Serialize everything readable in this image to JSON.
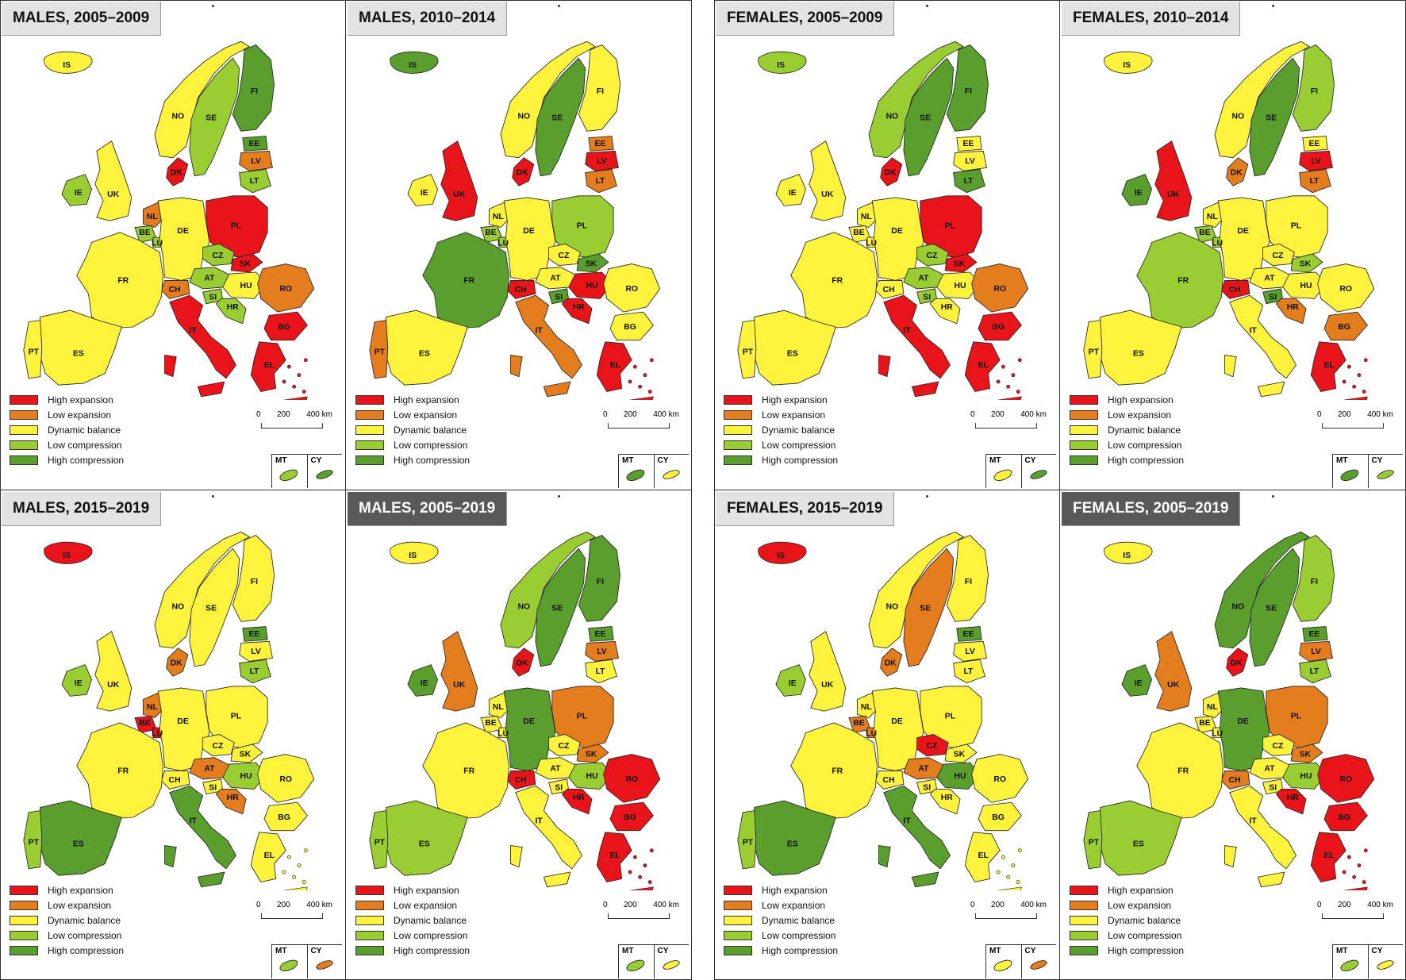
{
  "colors": {
    "high_expansion": "#e8141a",
    "low_expansion": "#e37d1e",
    "dynamic_balance": "#fdf23c",
    "low_compression": "#9acd32",
    "high_compression": "#5a9e2d"
  },
  "legend": [
    {
      "key": "high_expansion",
      "label": "High expansion"
    },
    {
      "key": "low_expansion",
      "label": "Low expansion"
    },
    {
      "key": "dynamic_balance",
      "label": "Dynamic balance"
    },
    {
      "key": "low_compression",
      "label": "Low compression"
    },
    {
      "key": "high_compression",
      "label": "High compression"
    }
  ],
  "scale": {
    "labels": [
      "0",
      "200",
      "400 km"
    ]
  },
  "inset_labels": [
    "MT",
    "CY"
  ],
  "panels": [
    {
      "title": "MALES, 2005–2009",
      "dark": false,
      "classes": {
        "IS": "dynamic_balance",
        "NO": "dynamic_balance",
        "SE": "low_compression",
        "FI": "high_compression",
        "EE": "high_compression",
        "LV": "low_expansion",
        "LT": "low_compression",
        "DK": "high_expansion",
        "IE": "low_compression",
        "UK": "dynamic_balance",
        "NL": "low_expansion",
        "BE": "low_compression",
        "LU": "low_compression",
        "DE": "dynamic_balance",
        "PL": "high_expansion",
        "CZ": "low_compression",
        "SK": "high_expansion",
        "AT": "low_compression",
        "CH": "low_expansion",
        "HU": "dynamic_balance",
        "SI": "low_compression",
        "HR": "low_compression",
        "RO": "low_expansion",
        "BG": "high_expansion",
        "EL": "high_expansion",
        "FR": "dynamic_balance",
        "ES": "dynamic_balance",
        "PT": "dynamic_balance",
        "IT": "high_expansion",
        "MT": "low_compression",
        "CY": "high_compression"
      }
    },
    {
      "title": "MALES, 2010–2014",
      "dark": false,
      "classes": {
        "IS": "high_compression",
        "NO": "dynamic_balance",
        "SE": "high_compression",
        "FI": "dynamic_balance",
        "EE": "low_expansion",
        "LV": "high_expansion",
        "LT": "low_expansion",
        "DK": "high_expansion",
        "IE": "dynamic_balance",
        "UK": "high_expansion",
        "NL": "dynamic_balance",
        "BE": "low_compression",
        "LU": "low_compression",
        "DE": "dynamic_balance",
        "PL": "low_compression",
        "CZ": "dynamic_balance",
        "SK": "high_compression",
        "AT": "dynamic_balance",
        "CH": "high_expansion",
        "HU": "high_expansion",
        "SI": "high_compression",
        "HR": "high_expansion",
        "RO": "dynamic_balance",
        "BG": "dynamic_balance",
        "EL": "high_expansion",
        "FR": "high_compression",
        "ES": "dynamic_balance",
        "PT": "low_expansion",
        "IT": "low_expansion",
        "MT": "high_compression",
        "CY": "dynamic_balance"
      }
    },
    {
      "title": "FEMALES, 2005–2009",
      "dark": false,
      "classes": {
        "IS": "low_compression",
        "NO": "low_compression",
        "SE": "high_compression",
        "FI": "high_compression",
        "EE": "dynamic_balance",
        "LV": "dynamic_balance",
        "LT": "high_compression",
        "DK": "high_expansion",
        "IE": "dynamic_balance",
        "UK": "dynamic_balance",
        "NL": "dynamic_balance",
        "BE": "dynamic_balance",
        "LU": "dynamic_balance",
        "DE": "dynamic_balance",
        "PL": "high_expansion",
        "CZ": "low_compression",
        "SK": "high_expansion",
        "AT": "low_compression",
        "CH": "dynamic_balance",
        "HU": "dynamic_balance",
        "SI": "low_compression",
        "HR": "dynamic_balance",
        "RO": "low_expansion",
        "BG": "high_expansion",
        "EL": "high_expansion",
        "FR": "dynamic_balance",
        "ES": "dynamic_balance",
        "PT": "dynamic_balance",
        "IT": "high_expansion",
        "MT": "dynamic_balance",
        "CY": "high_compression"
      }
    },
    {
      "title": "FEMALES, 2010–2014",
      "dark": false,
      "classes": {
        "IS": "dynamic_balance",
        "NO": "dynamic_balance",
        "SE": "high_compression",
        "FI": "low_compression",
        "EE": "dynamic_balance",
        "LV": "high_expansion",
        "LT": "low_expansion",
        "DK": "low_expansion",
        "IE": "high_compression",
        "UK": "high_expansion",
        "NL": "dynamic_balance",
        "BE": "low_compression",
        "LU": "low_compression",
        "DE": "dynamic_balance",
        "PL": "dynamic_balance",
        "CZ": "dynamic_balance",
        "SK": "low_compression",
        "AT": "dynamic_balance",
        "CH": "high_expansion",
        "HU": "dynamic_balance",
        "SI": "high_compression",
        "HR": "low_expansion",
        "RO": "dynamic_balance",
        "BG": "low_expansion",
        "EL": "high_expansion",
        "FR": "low_compression",
        "ES": "dynamic_balance",
        "PT": "dynamic_balance",
        "IT": "dynamic_balance",
        "MT": "high_compression",
        "CY": "low_compression"
      }
    },
    {
      "title": "MALES, 2015–2019",
      "dark": false,
      "classes": {
        "IS": "high_expansion",
        "NO": "dynamic_balance",
        "SE": "dynamic_balance",
        "FI": "dynamic_balance",
        "EE": "high_compression",
        "LV": "dynamic_balance",
        "LT": "low_compression",
        "DK": "low_expansion",
        "IE": "low_compression",
        "UK": "dynamic_balance",
        "NL": "low_expansion",
        "BE": "high_expansion",
        "LU": "high_expansion",
        "DE": "dynamic_balance",
        "PL": "dynamic_balance",
        "CZ": "dynamic_balance",
        "SK": "dynamic_balance",
        "AT": "low_expansion",
        "CH": "dynamic_balance",
        "HU": "low_compression",
        "SI": "dynamic_balance",
        "HR": "low_expansion",
        "RO": "dynamic_balance",
        "BG": "dynamic_balance",
        "EL": "dynamic_balance",
        "FR": "dynamic_balance",
        "ES": "high_compression",
        "PT": "low_compression",
        "IT": "high_compression",
        "MT": "low_compression",
        "CY": "low_expansion"
      }
    },
    {
      "title": "MALES, 2005–2019",
      "dark": true,
      "classes": {
        "IS": "dynamic_balance",
        "NO": "low_compression",
        "SE": "high_compression",
        "FI": "high_compression",
        "EE": "high_compression",
        "LV": "low_expansion",
        "LT": "dynamic_balance",
        "DK": "high_expansion",
        "IE": "high_compression",
        "UK": "low_expansion",
        "NL": "dynamic_balance",
        "BE": "dynamic_balance",
        "LU": "dynamic_balance",
        "DE": "high_compression",
        "PL": "low_expansion",
        "CZ": "dynamic_balance",
        "SK": "low_expansion",
        "AT": "dynamic_balance",
        "CH": "high_expansion",
        "HU": "low_compression",
        "SI": "dynamic_balance",
        "HR": "high_expansion",
        "RO": "high_expansion",
        "BG": "high_expansion",
        "EL": "high_expansion",
        "FR": "dynamic_balance",
        "ES": "low_compression",
        "PT": "low_compression",
        "IT": "dynamic_balance",
        "MT": "low_compression",
        "CY": "dynamic_balance"
      }
    },
    {
      "title": "FEMALES, 2015–2019",
      "dark": false,
      "classes": {
        "IS": "high_expansion",
        "NO": "dynamic_balance",
        "SE": "low_expansion",
        "FI": "dynamic_balance",
        "EE": "high_compression",
        "LV": "dynamic_balance",
        "LT": "dynamic_balance",
        "DK": "low_expansion",
        "IE": "low_compression",
        "UK": "dynamic_balance",
        "NL": "dynamic_balance",
        "BE": "low_expansion",
        "LU": "low_expansion",
        "DE": "dynamic_balance",
        "PL": "dynamic_balance",
        "CZ": "high_expansion",
        "SK": "dynamic_balance",
        "AT": "low_expansion",
        "CH": "dynamic_balance",
        "HU": "high_compression",
        "SI": "dynamic_balance",
        "HR": "dynamic_balance",
        "RO": "dynamic_balance",
        "BG": "dynamic_balance",
        "EL": "dynamic_balance",
        "FR": "dynamic_balance",
        "ES": "high_compression",
        "PT": "low_compression",
        "IT": "high_compression",
        "MT": "dynamic_balance",
        "CY": "low_expansion"
      }
    },
    {
      "title": "FEMALES, 2005–2019",
      "dark": true,
      "classes": {
        "IS": "dynamic_balance",
        "NO": "high_compression",
        "SE": "high_compression",
        "FI": "low_compression",
        "EE": "high_compression",
        "LV": "low_expansion",
        "LT": "low_compression",
        "DK": "high_expansion",
        "IE": "high_compression",
        "UK": "low_expansion",
        "NL": "dynamic_balance",
        "BE": "dynamic_balance",
        "LU": "dynamic_balance",
        "DE": "high_compression",
        "PL": "low_expansion",
        "CZ": "dynamic_balance",
        "SK": "low_expansion",
        "AT": "dynamic_balance",
        "CH": "low_expansion",
        "HU": "low_compression",
        "SI": "dynamic_balance",
        "HR": "high_expansion",
        "RO": "high_expansion",
        "BG": "high_expansion",
        "EL": "high_expansion",
        "FR": "dynamic_balance",
        "ES": "low_compression",
        "PT": "low_compression",
        "IT": "dynamic_balance",
        "MT": "low_compression",
        "CY": "dynamic_balance"
      }
    }
  ]
}
